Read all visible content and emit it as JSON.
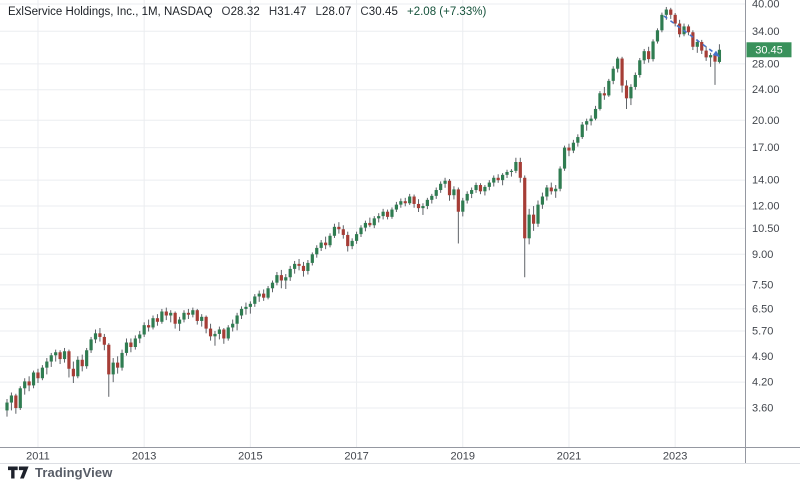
{
  "header": {
    "symbol": "ExlService Holdings, Inc., 1M, NASDAQ",
    "open_label": "O",
    "open": "28.32",
    "high_label": "H",
    "high": "31.47",
    "low_label": "L",
    "low": "28.07",
    "close_label": "C",
    "close": "30.45",
    "change": "+2.08 (+7.33%)"
  },
  "logo": {
    "text": "TradingView"
  },
  "price_badge": "30.45",
  "colors": {
    "up_body": "#2f7c51",
    "down_body": "#a63d36",
    "wick": "#5f6368",
    "grid": "#ebedf0",
    "axis_line": "#9598a1",
    "axis_line_light": "#dcdee3",
    "axis_text": "#42464d",
    "badge_bg": "#39915b",
    "badge_text": "#ffffff",
    "trendline": "#4673c9"
  },
  "chart_data": {
    "type": "candlestick",
    "title": "ExlService Holdings, Inc., 1M, NASDAQ",
    "interval": "1M",
    "log_scale": true,
    "start_month": "2010-06",
    "end_month": "2023-11",
    "last_price": 30.45,
    "y_axis_labels": [
      "40.00",
      "34.00",
      "28.00",
      "24.00",
      "20.00",
      "17.00",
      "14.00",
      "12.00",
      "10.50",
      "9.00",
      "7.50",
      "6.50",
      "5.70",
      "4.90",
      "4.20",
      "3.60"
    ],
    "x_axis_labels": [
      "2011",
      "2013",
      "2015",
      "2017",
      "2019",
      "2021",
      "2023"
    ],
    "annotations": [
      {
        "type": "dashed-arrow",
        "from": [
          664,
          16
        ],
        "to": [
          720,
          57
        ]
      }
    ],
    "candles": [
      [
        3.55,
        3.8,
        3.42,
        3.72
      ],
      [
        3.72,
        3.95,
        3.55,
        3.88
      ],
      [
        3.88,
        3.92,
        3.48,
        3.6
      ],
      [
        3.6,
        4.1,
        3.56,
        4.05
      ],
      [
        4.05,
        4.3,
        3.9,
        4.22
      ],
      [
        4.22,
        4.35,
        3.98,
        4.12
      ],
      [
        4.12,
        4.5,
        4.05,
        4.45
      ],
      [
        4.45,
        4.55,
        4.18,
        4.3
      ],
      [
        4.3,
        4.65,
        4.25,
        4.58
      ],
      [
        4.58,
        4.85,
        4.4,
        4.75
      ],
      [
        4.75,
        5.0,
        4.6,
        4.93
      ],
      [
        4.93,
        5.1,
        4.75,
        5.02
      ],
      [
        5.02,
        5.08,
        4.68,
        4.82
      ],
      [
        4.82,
        5.15,
        4.72,
        5.05
      ],
      [
        5.05,
        5.1,
        4.32,
        4.55
      ],
      [
        4.55,
        4.75,
        4.18,
        4.35
      ],
      [
        4.35,
        4.9,
        4.3,
        4.8
      ],
      [
        4.8,
        4.95,
        4.48,
        4.62
      ],
      [
        4.62,
        5.15,
        4.55,
        5.08
      ],
      [
        5.08,
        5.5,
        5.0,
        5.42
      ],
      [
        5.42,
        5.75,
        5.3,
        5.62
      ],
      [
        5.62,
        5.8,
        5.35,
        5.5
      ],
      [
        5.5,
        5.6,
        5.08,
        5.25
      ],
      [
        5.25,
        5.3,
        3.85,
        4.4
      ],
      [
        4.4,
        4.85,
        4.2,
        4.72
      ],
      [
        4.72,
        4.9,
        4.42,
        4.58
      ],
      [
        4.58,
        5.1,
        4.5,
        5.0
      ],
      [
        5.0,
        5.45,
        4.92,
        5.32
      ],
      [
        5.32,
        5.45,
        5.02,
        5.18
      ],
      [
        5.18,
        5.55,
        5.1,
        5.45
      ],
      [
        5.45,
        5.7,
        5.3,
        5.58
      ],
      [
        5.58,
        6.0,
        5.5,
        5.9
      ],
      [
        5.9,
        6.1,
        5.68,
        5.82
      ],
      [
        5.82,
        6.25,
        5.75,
        6.15
      ],
      [
        6.15,
        6.3,
        5.88,
        6.02
      ],
      [
        6.02,
        6.5,
        5.95,
        6.4
      ],
      [
        6.4,
        6.55,
        6.08,
        6.25
      ],
      [
        6.25,
        6.45,
        6.0,
        6.35
      ],
      [
        6.35,
        6.4,
        5.78,
        5.95
      ],
      [
        5.95,
        6.2,
        5.7,
        6.1
      ],
      [
        6.1,
        6.45,
        6.0,
        6.35
      ],
      [
        6.35,
        6.5,
        6.12,
        6.28
      ],
      [
        6.28,
        6.55,
        6.18,
        6.45
      ],
      [
        6.45,
        6.5,
        5.92,
        6.05
      ],
      [
        6.05,
        6.3,
        5.85,
        6.2
      ],
      [
        6.2,
        6.25,
        5.62,
        5.78
      ],
      [
        5.78,
        5.95,
        5.38,
        5.52
      ],
      [
        5.52,
        5.7,
        5.22,
        5.6
      ],
      [
        5.6,
        5.85,
        5.42,
        5.75
      ],
      [
        5.75,
        5.8,
        5.28,
        5.45
      ],
      [
        5.45,
        5.9,
        5.38,
        5.82
      ],
      [
        5.82,
        6.1,
        5.68,
        5.95
      ],
      [
        5.95,
        6.35,
        5.72,
        6.25
      ],
      [
        6.25,
        6.6,
        6.12,
        6.5
      ],
      [
        6.5,
        6.75,
        6.28,
        6.58
      ],
      [
        6.58,
        6.8,
        6.32,
        6.7
      ],
      [
        6.7,
        7.1,
        6.58,
        7.0
      ],
      [
        7.0,
        7.25,
        6.78,
        7.12
      ],
      [
        7.12,
        7.3,
        6.82,
        6.95
      ],
      [
        6.95,
        7.45,
        6.88,
        7.35
      ],
      [
        7.35,
        7.7,
        7.18,
        7.6
      ],
      [
        7.6,
        8.1,
        7.48,
        7.95
      ],
      [
        7.95,
        8.2,
        7.35,
        7.7
      ],
      [
        7.7,
        8.0,
        7.32,
        7.85
      ],
      [
        7.85,
        8.4,
        7.68,
        8.25
      ],
      [
        8.25,
        8.65,
        8.02,
        8.5
      ],
      [
        8.5,
        8.75,
        8.18,
        8.4
      ],
      [
        8.4,
        8.6,
        7.88,
        8.15
      ],
      [
        8.15,
        8.7,
        7.98,
        8.55
      ],
      [
        8.55,
        9.1,
        8.42,
        9.0
      ],
      [
        9.0,
        9.5,
        8.82,
        9.35
      ],
      [
        9.35,
        9.8,
        9.18,
        9.65
      ],
      [
        9.65,
        10.0,
        9.28,
        9.5
      ],
      [
        9.5,
        10.2,
        9.38,
        10.05
      ],
      [
        10.05,
        10.8,
        9.92,
        10.6
      ],
      [
        10.6,
        10.9,
        10.18,
        10.45
      ],
      [
        10.45,
        10.7,
        9.88,
        10.1
      ],
      [
        10.1,
        10.3,
        9.15,
        9.45
      ],
      [
        9.45,
        9.9,
        9.28,
        9.75
      ],
      [
        9.75,
        10.3,
        9.58,
        10.15
      ],
      [
        10.15,
        10.7,
        9.98,
        10.55
      ],
      [
        10.55,
        11.0,
        10.32,
        10.85
      ],
      [
        10.85,
        11.2,
        10.58,
        10.7
      ],
      [
        10.7,
        11.3,
        10.52,
        11.15
      ],
      [
        11.15,
        11.5,
        10.88,
        11.3
      ],
      [
        11.3,
        11.8,
        11.08,
        11.6
      ],
      [
        11.6,
        11.75,
        11.08,
        11.25
      ],
      [
        11.25,
        11.9,
        11.12,
        11.75
      ],
      [
        11.75,
        12.3,
        11.58,
        12.1
      ],
      [
        12.1,
        12.55,
        11.88,
        12.35
      ],
      [
        12.35,
        12.6,
        11.98,
        12.2
      ],
      [
        12.2,
        12.9,
        12.08,
        12.7
      ],
      [
        12.7,
        12.85,
        11.88,
        12.15
      ],
      [
        12.15,
        12.5,
        11.58,
        11.85
      ],
      [
        11.85,
        12.2,
        11.38,
        12.0
      ],
      [
        12.0,
        12.6,
        11.78,
        12.45
      ],
      [
        12.45,
        12.9,
        12.18,
        12.75
      ],
      [
        12.75,
        13.4,
        12.52,
        13.2
      ],
      [
        13.2,
        13.9,
        12.98,
        13.7
      ],
      [
        13.7,
        14.2,
        13.38,
        13.95
      ],
      [
        13.95,
        14.1,
        12.38,
        12.8
      ],
      [
        12.8,
        13.5,
        12.48,
        13.25
      ],
      [
        13.25,
        13.4,
        9.6,
        11.6
      ],
      [
        11.6,
        12.6,
        11.28,
        12.4
      ],
      [
        12.4,
        13.1,
        12.18,
        12.9
      ],
      [
        12.9,
        13.4,
        12.58,
        13.2
      ],
      [
        13.2,
        13.8,
        12.98,
        13.6
      ],
      [
        13.6,
        13.75,
        12.88,
        13.1
      ],
      [
        13.1,
        13.6,
        12.78,
        13.45
      ],
      [
        13.45,
        14.0,
        13.18,
        13.8
      ],
      [
        13.8,
        14.4,
        13.48,
        14.2
      ],
      [
        14.2,
        14.5,
        13.78,
        14.0
      ],
      [
        14.0,
        14.6,
        13.58,
        14.45
      ],
      [
        14.45,
        14.9,
        14.18,
        14.7
      ],
      [
        14.7,
        14.95,
        14.3,
        14.8
      ],
      [
        14.8,
        16.0,
        14.6,
        15.6
      ],
      [
        15.6,
        16.0,
        13.8,
        14.2
      ],
      [
        14.2,
        14.4,
        7.85,
        9.9
      ],
      [
        9.9,
        11.8,
        9.55,
        11.4
      ],
      [
        11.4,
        12.0,
        10.35,
        10.8
      ],
      [
        10.8,
        12.4,
        10.6,
        12.1
      ],
      [
        12.1,
        13.0,
        11.8,
        12.7
      ],
      [
        12.7,
        13.6,
        12.4,
        13.4
      ],
      [
        13.4,
        13.8,
        12.85,
        13.1
      ],
      [
        13.1,
        13.6,
        12.6,
        13.3
      ],
      [
        13.3,
        15.2,
        13.1,
        15.0
      ],
      [
        15.0,
        17.2,
        14.8,
        17.0
      ],
      [
        17.0,
        17.4,
        16.15,
        16.7
      ],
      [
        16.7,
        17.8,
        16.45,
        17.5
      ],
      [
        17.5,
        18.4,
        17.1,
        18.1
      ],
      [
        18.1,
        19.8,
        17.9,
        19.5
      ],
      [
        19.5,
        20.2,
        18.8,
        19.9
      ],
      [
        19.9,
        20.6,
        19.4,
        20.2
      ],
      [
        20.2,
        21.8,
        20.0,
        21.4
      ],
      [
        21.4,
        23.8,
        21.2,
        23.5
      ],
      [
        23.5,
        24.4,
        22.6,
        23.2
      ],
      [
        23.2,
        25.6,
        23.0,
        25.3
      ],
      [
        25.3,
        27.6,
        24.8,
        27.2
      ],
      [
        27.2,
        29.2,
        26.6,
        28.9
      ],
      [
        28.9,
        29.2,
        23.6,
        24.6
      ],
      [
        24.6,
        25.4,
        21.4,
        22.8
      ],
      [
        22.8,
        24.8,
        21.9,
        24.4
      ],
      [
        24.4,
        26.6,
        24.0,
        26.2
      ],
      [
        26.2,
        29.0,
        25.8,
        28.6
      ],
      [
        28.6,
        30.6,
        28.0,
        30.2
      ],
      [
        30.2,
        31.0,
        28.2,
        28.8
      ],
      [
        28.8,
        32.4,
        28.4,
        32.0
      ],
      [
        32.0,
        34.6,
        31.6,
        34.2
      ],
      [
        34.2,
        38.0,
        33.8,
        37.5
      ],
      [
        37.5,
        39.3,
        36.4,
        38.7
      ],
      [
        38.7,
        39.1,
        36.6,
        37.5
      ],
      [
        37.5,
        37.9,
        35.0,
        35.6
      ],
      [
        35.6,
        36.4,
        32.8,
        33.4
      ],
      [
        33.4,
        35.6,
        33.0,
        35.0
      ],
      [
        35.0,
        35.4,
        33.2,
        33.8
      ],
      [
        33.8,
        34.2,
        30.4,
        31.0
      ],
      [
        31.0,
        32.4,
        29.9,
        31.9
      ],
      [
        31.9,
        32.3,
        29.7,
        30.3
      ],
      [
        30.3,
        31.1,
        28.5,
        29.1
      ],
      [
        29.1,
        29.9,
        27.5,
        29.5
      ],
      [
        29.5,
        29.7,
        24.7,
        28.37
      ],
      [
        28.32,
        31.47,
        28.07,
        30.45
      ]
    ]
  }
}
